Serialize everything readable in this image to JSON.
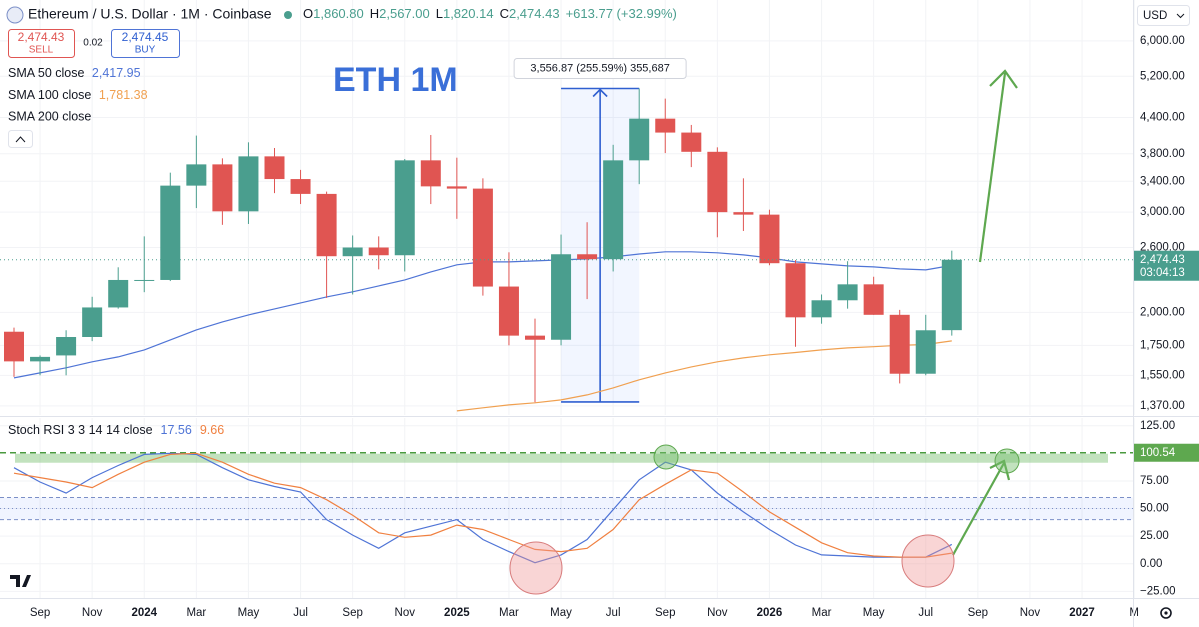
{
  "chart_data": [
    {
      "type": "candlestick",
      "title": "Ethereum / U.S. Dollar · 1M · Coinbase",
      "ohlc_header": [
        {
          "key": "O",
          "value": "1,860.80"
        },
        {
          "key": "H",
          "value": "2,567.00"
        },
        {
          "key": "L",
          "value": "1,820.14"
        },
        {
          "key": "C",
          "value": "2,474.43"
        }
      ],
      "change": "+613.77 (+32.99%)",
      "annotation": "ETH 1M",
      "categories": [
        null,
        "Sep",
        null,
        "Nov",
        null,
        "2024",
        null,
        "Mar",
        null,
        "May",
        null,
        "Jul",
        null,
        "Sep",
        null,
        "Nov",
        null,
        "2025",
        null,
        "Mar",
        null,
        "May",
        null,
        "Jul",
        null,
        "Sep",
        null,
        "Nov",
        null,
        "2026",
        null,
        "Mar",
        null,
        "May",
        null,
        "Jul",
        null,
        "Sep",
        null,
        "Nov",
        null,
        "2027",
        null,
        "M"
      ],
      "open": [
        1849,
        1640,
        1680,
        1810,
        2040,
        2280,
        2280,
        3340,
        3640,
        3010,
        3760,
        3430,
        3230,
        2510,
        2600,
        2520,
        3700,
        3330,
        3300,
        2220,
        1820,
        1790,
        2530,
        2480,
        3700,
        4380,
        4140,
        3830,
        3000,
        2970,
        2440,
        1960,
        2100,
        2240,
        1980,
        1560,
        1860.8,
        null,
        null,
        null,
        null,
        null,
        null,
        null
      ],
      "high": [
        1880,
        1680,
        1860,
        2130,
        2400,
        2720,
        3520,
        4090,
        3730,
        3980,
        3890,
        3560,
        3260,
        2730,
        2720,
        3720,
        4100,
        3740,
        3440,
        2550,
        1950,
        2740,
        2880,
        3940,
        4950,
        4750,
        4270,
        3900,
        3440,
        3030,
        2470,
        2150,
        2460,
        2310,
        2020,
        1980,
        2567,
        null,
        null,
        null,
        null,
        null,
        null,
        null
      ],
      "low": [
        1540,
        1550,
        1550,
        1780,
        2030,
        2170,
        2270,
        3050,
        2850,
        2860,
        3240,
        3100,
        2120,
        2150,
        2380,
        2360,
        3100,
        2920,
        2140,
        1750,
        1390,
        1750,
        2110,
        2360,
        3360,
        3810,
        3600,
        2710,
        2780,
        2420,
        1740,
        1910,
        2030,
        1980,
        1500,
        1550,
        1820.14,
        null,
        null,
        null,
        null,
        null,
        null,
        null
      ],
      "close": [
        1640,
        1670,
        1810,
        2040,
        2280,
        2280,
        3340,
        3640,
        3010,
        3760,
        3430,
        3230,
        2510,
        2600,
        2520,
        3700,
        3330,
        3300,
        2220,
        1820,
        1790,
        2530,
        2480,
        3700,
        4380,
        4140,
        3830,
        3000,
        2970,
        2440,
        1960,
        2100,
        2240,
        1980,
        1560,
        1860,
        2474.43,
        null,
        null,
        null,
        null,
        null,
        null,
        null
      ],
      "up_color": "#4a9e8e",
      "down_color": "#e05552",
      "series": [
        {
          "name": "SMA 50 close",
          "color": "#4f74d6",
          "last_label": "2,417.95",
          "values": [
            1534,
            1565,
            1598,
            1637,
            1670,
            1718,
            1789,
            1863,
            1924,
            1979,
            2028,
            2078,
            2129,
            2173,
            2226,
            2281,
            2356,
            2424,
            2453,
            2453,
            2463,
            2473,
            2483,
            2503,
            2533,
            2555,
            2555,
            2545,
            2523,
            2493,
            2453,
            2433,
            2414,
            2404,
            2384,
            2375,
            2417.95,
            null,
            null,
            null,
            null,
            null,
            null,
            null
          ]
        },
        {
          "name": "SMA 100 close",
          "color": "#f0a050",
          "last_label": "1,781.38",
          "values": [
            null,
            null,
            null,
            null,
            null,
            null,
            null,
            null,
            null,
            null,
            null,
            null,
            null,
            null,
            null,
            null,
            null,
            1342,
            1359,
            1375,
            1387,
            1403,
            1432,
            1473,
            1522,
            1565,
            1604,
            1637,
            1663,
            1684,
            1700,
            1718,
            1732,
            1740,
            1750,
            1756,
            1781.38,
            null,
            null,
            null,
            null,
            null,
            null,
            null
          ]
        }
      ],
      "extra_indicator": "SMA 200 close",
      "log": true,
      "ylim": [
        1320,
        7080
      ],
      "yticks": [
        {
          "value": 6000,
          "label": "6,000.00"
        },
        {
          "value": 5200,
          "label": "5,200.00"
        },
        {
          "value": 4400,
          "label": "4,400.00"
        },
        {
          "value": 3800,
          "label": "3,800.00"
        },
        {
          "value": 3400,
          "label": "3,400.00"
        },
        {
          "value": 3000,
          "label": "3,000.00"
        },
        {
          "value": 2600,
          "label": "2,600.00"
        },
        {
          "value": 2000,
          "label": "2,000.00"
        },
        {
          "value": 1750,
          "label": "1,750.00"
        },
        {
          "value": 1550,
          "label": "1,550.00"
        },
        {
          "value": 1370,
          "label": "1,370.00"
        }
      ],
      "grid": true,
      "last_price": {
        "value": 2474.43,
        "label": "2,474.43"
      },
      "countdown": "03:04:13",
      "measure": {
        "label": "3,556.87 (255.59%) 355,687",
        "low": 1391.63,
        "high": 4948.5,
        "x_range": [
          21,
          24
        ]
      },
      "currency": "USD",
      "trade": {
        "sell_price": "2,474.43",
        "sell": "SELL",
        "spread": "0.02",
        "buy_price": "2,474.45",
        "buy": "BUY"
      }
    },
    {
      "type": "line",
      "title": "Stoch RSI 3 3 14 14 close",
      "series": [
        {
          "name": "K",
          "color": "#4f74d6",
          "values": [
            87,
            74,
            64,
            78,
            89,
            99,
            100,
            99,
            87,
            76,
            70,
            65,
            40,
            26,
            14,
            28,
            34,
            40,
            22,
            11,
            1,
            8,
            22,
            49,
            76,
            92,
            85,
            64,
            47,
            31,
            17,
            8,
            7,
            6,
            6,
            6,
            17.56,
            null,
            null,
            null,
            null,
            null,
            null,
            null
          ]
        },
        {
          "name": "D",
          "color": "#f08040",
          "values": [
            82,
            78,
            74,
            69,
            81,
            92,
            99,
            100,
            92,
            81,
            73,
            69,
            58,
            44,
            28,
            24,
            26,
            35,
            31,
            22,
            13,
            11,
            14,
            31,
            58,
            72,
            85,
            82,
            65,
            47,
            33,
            19,
            10,
            7,
            6,
            6,
            9.66,
            null,
            null,
            null,
            null,
            null,
            null,
            null
          ]
        }
      ],
      "ylim": [
        -31,
        132
      ],
      "yticks": [
        {
          "value": 125,
          "label": "125.00"
        },
        {
          "value": 75,
          "label": "75.00"
        },
        {
          "value": 50,
          "label": "50.00"
        },
        {
          "value": 25,
          "label": "25.00"
        },
        {
          "value": 0,
          "label": "0.00"
        },
        {
          "value": -25,
          "label": "−25.00"
        }
      ],
      "bands": [
        60,
        50,
        40
      ],
      "level": 100.54,
      "grid": true
    }
  ]
}
